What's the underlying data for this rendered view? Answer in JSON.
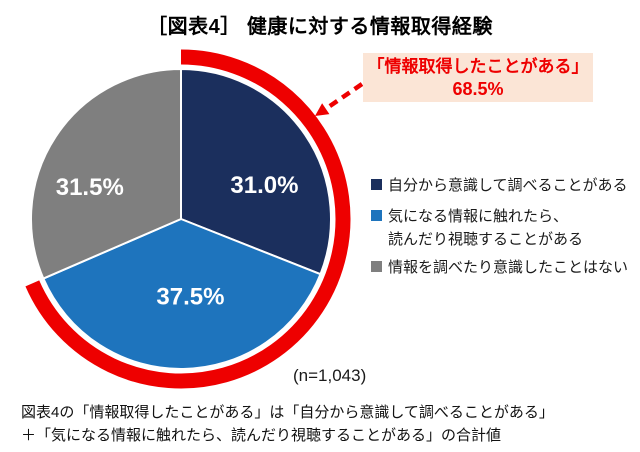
{
  "title": "［図表4］ 健康に対する情報取得経験",
  "chart_data": {
    "type": "pie",
    "title": "［図表4］ 健康に対する情報取得経験",
    "n_label": "(n=1,043)",
    "categories": [
      "自分から意識して調べることがある",
      "気になる情報に触れたら、読んだり視聴することがある",
      "情報を調べたり意識したことはない"
    ],
    "values": [
      31.0,
      37.5,
      31.5
    ],
    "slice_labels": [
      "31.0%",
      "37.5%",
      "31.5%"
    ],
    "colors": [
      "#1B2F5D",
      "#1E74BD",
      "#7F7F7F"
    ],
    "start_angle_deg": 0,
    "direction": "clockwise",
    "legend_position": "right",
    "highlight": {
      "label": "「情報取得したことがある」",
      "value": 68.5,
      "value_label": "68.5%",
      "arc_color": "#EE0000",
      "covers_slices": [
        0,
        1
      ]
    }
  },
  "callout": {
    "line1": "「情報取得したことがある」",
    "line2": "68.5%",
    "bg": "#FBE5D6",
    "color": "#EE0000"
  },
  "legend": {
    "items": [
      {
        "label": "自分から意識して調べることがある",
        "color": "#1B2F5D"
      },
      {
        "label": "気になる情報に触れたら、\n読んだり視聴することがある",
        "color": "#1E74BD"
      },
      {
        "label": "情報を調べたり意識したことはない",
        "color": "#7F7F7F"
      }
    ]
  },
  "n_label": "(n=1,043)",
  "footnote": "図表4の「情報取得したことがある」は「自分から意識して調べることがある」\n＋「気になる情報に触れたら、読んだり視聴することがある」の合計値"
}
